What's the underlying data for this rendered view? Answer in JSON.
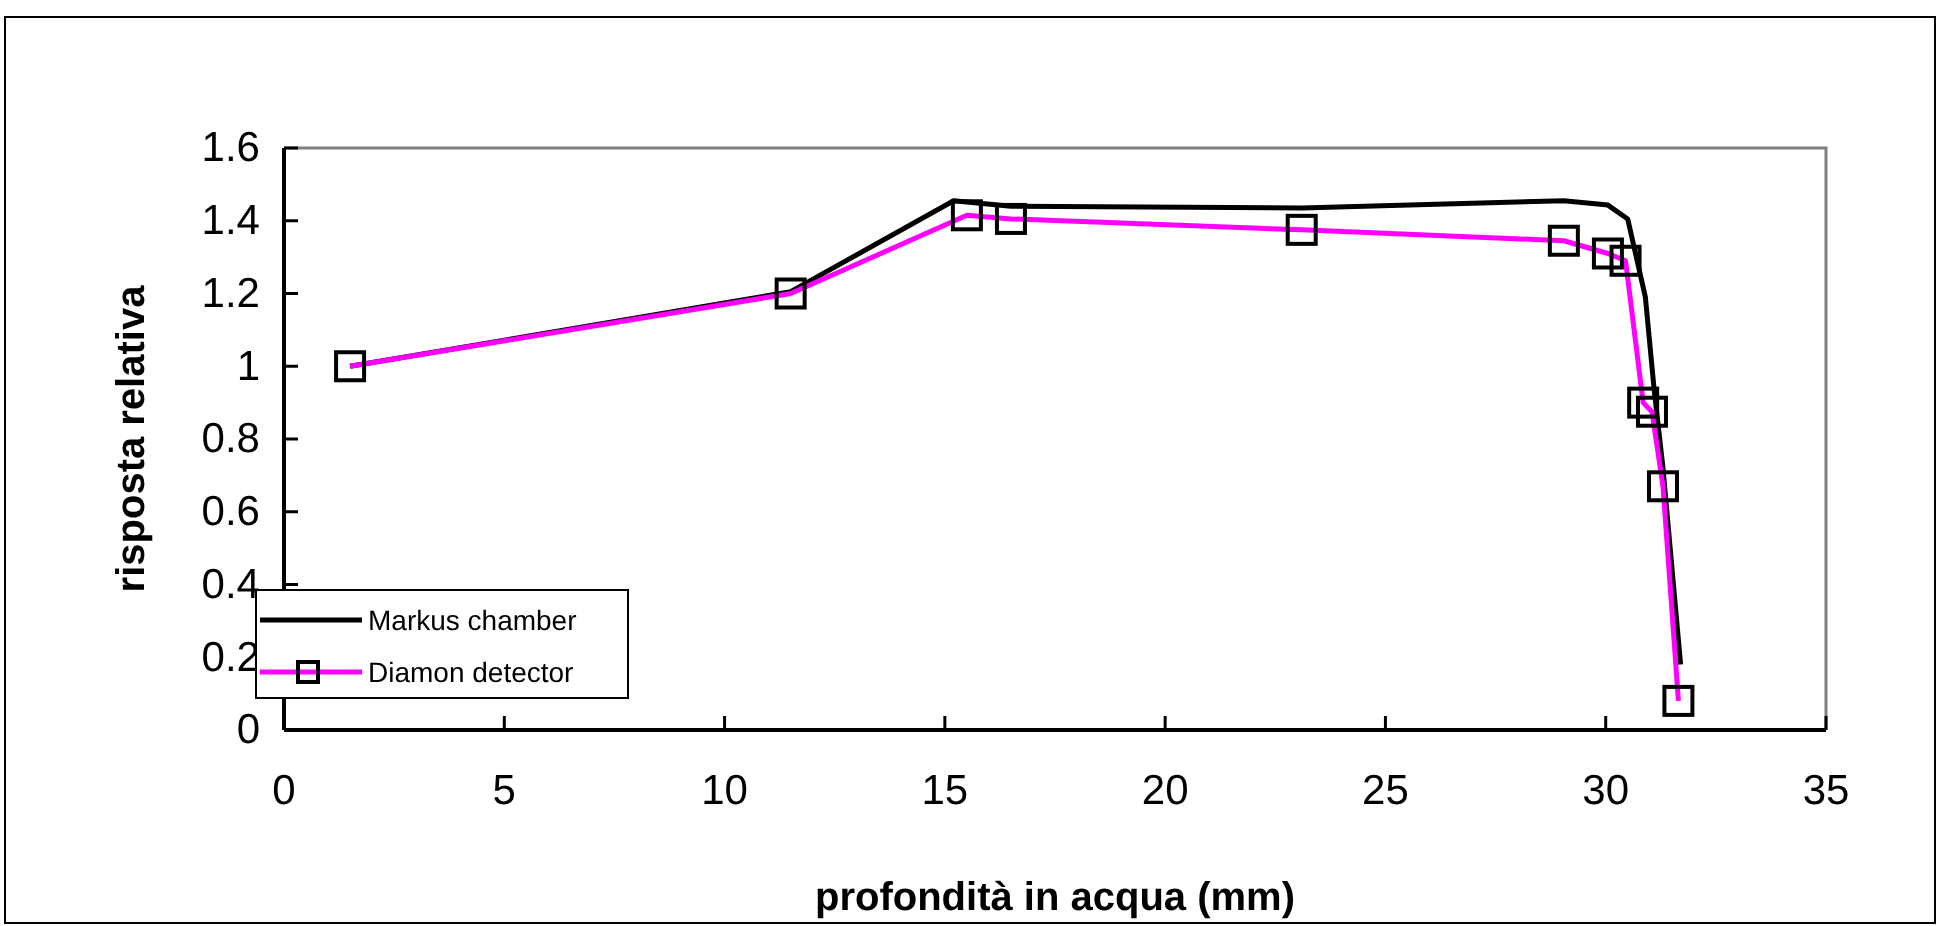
{
  "chart_data": {
    "type": "line",
    "xlabel": "profondità in acqua (mm)",
    "ylabel": "risposta relativa",
    "xlim": [
      0,
      35
    ],
    "xticks": [
      0,
      5,
      10,
      15,
      20,
      25,
      30,
      35
    ],
    "ylim": [
      0,
      1.6
    ],
    "yticks": [
      0,
      0.2,
      0.4,
      0.6,
      0.8,
      1,
      1.2,
      1.4,
      1.6
    ],
    "grid": false,
    "legend": "bottom left",
    "series": [
      {
        "name": "Markus chamber",
        "color": "#000000",
        "marker": "none",
        "x": [
          1.5,
          11.5,
          15.2,
          16.5,
          23.1,
          29.05,
          30.05,
          30.5,
          30.9,
          31.1,
          31.3,
          31.7
        ],
        "values": [
          1.0,
          1.205,
          1.455,
          1.44,
          1.435,
          1.455,
          1.443,
          1.405,
          1.19,
          0.935,
          0.72,
          0.18
        ]
      },
      {
        "name": "Diamon detector",
        "color": "#ff00ff",
        "marker": "square",
        "x": [
          1.5,
          11.5,
          15.5,
          16.5,
          23.1,
          29.05,
          30.05,
          30.45,
          30.85,
          31.05,
          31.3,
          31.65
        ],
        "values": [
          1.0,
          1.2,
          1.415,
          1.405,
          1.375,
          1.345,
          1.31,
          1.29,
          0.9,
          0.875,
          0.67,
          0.08
        ]
      }
    ]
  }
}
